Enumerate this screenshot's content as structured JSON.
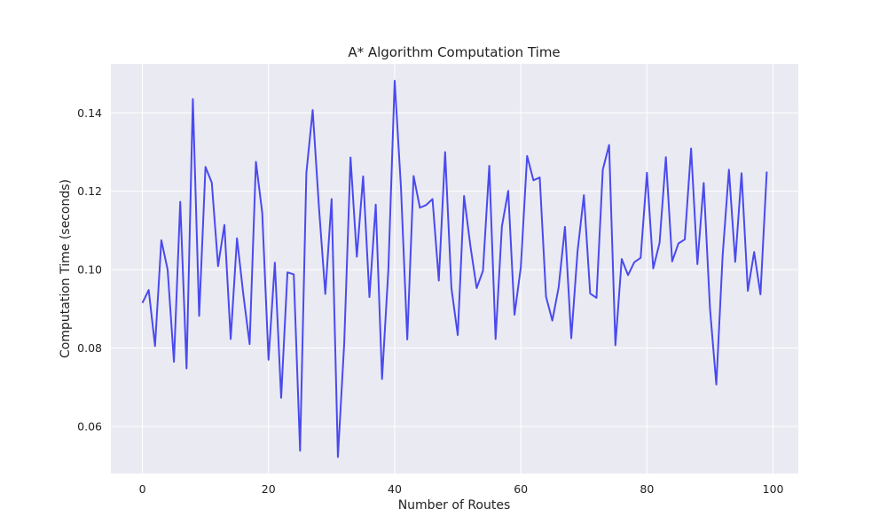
{
  "chart_data": {
    "type": "line",
    "title": "A* Algorithm Computation Time",
    "xlabel": "Number of Routes",
    "ylabel": "Computation Time (seconds)",
    "xlim": [
      -5,
      104
    ],
    "ylim": [
      0.048,
      0.1525
    ],
    "xticks": [
      0,
      20,
      40,
      60,
      80,
      100
    ],
    "yticks": [
      0.06,
      0.08,
      0.1,
      0.12,
      0.14
    ],
    "ytick_labels": [
      "0.06",
      "0.08",
      "0.10",
      "0.12",
      "0.14"
    ],
    "grid": true,
    "colors": {
      "line": "#3838ee",
      "plot_background": "#eaeaf2",
      "grid": "#ffffff"
    },
    "series": [
      {
        "x": [
          0,
          1,
          2,
          3,
          4,
          5,
          6,
          7,
          8,
          9,
          10,
          11,
          12,
          13,
          14,
          15,
          16,
          17,
          18,
          19,
          20,
          21,
          22,
          23,
          24,
          25,
          26,
          27,
          28,
          29,
          30,
          31,
          32,
          33,
          34,
          35,
          36,
          37,
          38,
          39,
          40,
          41,
          42,
          43,
          44,
          45,
          46,
          47,
          48,
          49,
          50,
          51,
          52,
          53,
          54,
          55,
          56,
          57,
          58,
          59,
          60,
          61,
          62,
          63,
          64,
          65,
          66,
          67,
          68,
          69,
          70,
          71,
          72,
          73,
          74,
          75,
          76,
          77,
          78,
          79,
          80,
          81,
          82,
          83,
          84,
          85,
          86,
          87,
          88,
          89,
          90,
          91,
          92,
          93,
          94,
          95,
          96,
          97,
          98,
          99
        ],
        "values": [
          0.0915,
          0.0948,
          0.0805,
          0.1075,
          0.1,
          0.0765,
          0.1173,
          0.0748,
          0.1435,
          0.0882,
          0.1262,
          0.1222,
          0.1009,
          0.1114,
          0.0823,
          0.108,
          0.0937,
          0.081,
          0.1275,
          0.1145,
          0.077,
          0.1018,
          0.0673,
          0.0993,
          0.0988,
          0.0538,
          0.1247,
          0.1407,
          0.1158,
          0.0938,
          0.118,
          0.0522,
          0.0812,
          0.1286,
          0.1033,
          0.1238,
          0.093,
          0.1166,
          0.0721,
          0.1,
          0.1482,
          0.1209,
          0.0822,
          0.1239,
          0.1158,
          0.1165,
          0.118,
          0.0972,
          0.13,
          0.0953,
          0.0833,
          0.1188,
          0.1061,
          0.0953,
          0.0997,
          0.1265,
          0.0823,
          0.111,
          0.1201,
          0.0885,
          0.1006,
          0.129,
          0.1228,
          0.1235,
          0.0931,
          0.087,
          0.0955,
          0.1109,
          0.0825,
          0.1047,
          0.119,
          0.0939,
          0.0928,
          0.1255,
          0.1318,
          0.0807,
          0.1027,
          0.0986,
          0.1019,
          0.103,
          0.1247,
          0.1003,
          0.1068,
          0.1287,
          0.1021,
          0.1067,
          0.1077,
          0.1309,
          0.1014,
          0.1221,
          0.09,
          0.0707,
          0.1035,
          0.1255,
          0.102,
          0.1246,
          0.0946,
          0.1045,
          0.0937,
          0.125
        ]
      }
    ]
  }
}
